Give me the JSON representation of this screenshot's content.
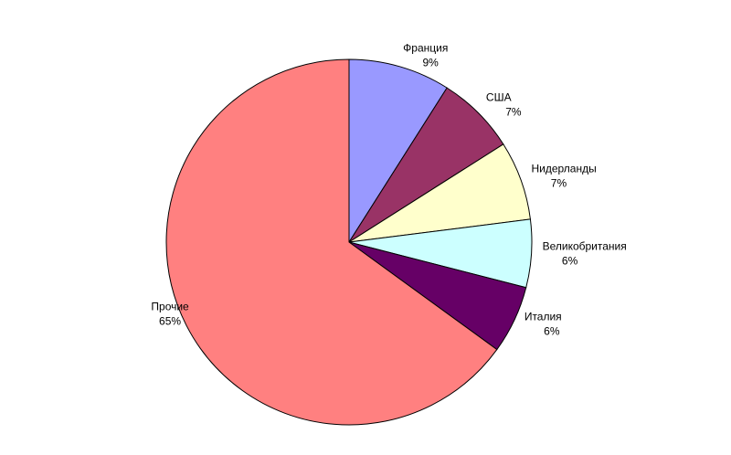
{
  "chart_data": {
    "type": "pie",
    "categories": [
      "Франция",
      "США",
      "Нидерланды",
      "Великобритания",
      "Италия",
      "Прочие"
    ],
    "values": [
      9,
      7,
      7,
      6,
      6,
      65
    ],
    "value_labels": [
      "9%",
      "7%",
      "7%",
      "6%",
      "6%",
      "65%"
    ],
    "colors": [
      "#9999ff",
      "#993366",
      "#ffffcc",
      "#ccffff",
      "#660066",
      "#ff8080"
    ]
  }
}
